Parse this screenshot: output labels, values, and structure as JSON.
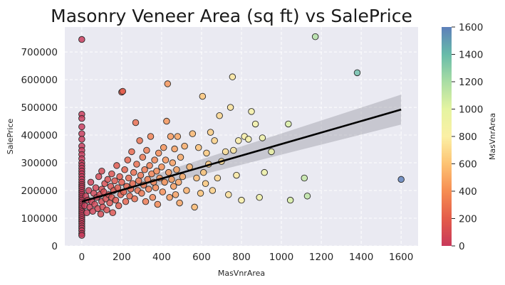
{
  "chart_data": {
    "type": "scatter",
    "title": "Masonry Veneer Area (sq ft) vs SalePrice",
    "xlabel": "MasVnrArea",
    "ylabel": "SalePrice",
    "xlim": [
      -85,
      1685
    ],
    "ylim": [
      0,
      790000
    ],
    "x_ticks": [
      0,
      200,
      400,
      600,
      800,
      1000,
      1200,
      1400,
      1600
    ],
    "y_ticks": [
      0,
      100000,
      200000,
      300000,
      400000,
      500000,
      600000,
      700000
    ],
    "x_tick_labels": [
      "0",
      "200",
      "400",
      "600",
      "800",
      "1000",
      "1200",
      "1400",
      "1600"
    ],
    "y_tick_labels": [
      "0",
      "100000",
      "200000",
      "300000",
      "400000",
      "500000",
      "600000",
      "700000"
    ],
    "grid": true,
    "background": "#eaeaf2",
    "colormap": "Spectral",
    "color_by": "MasVnrArea",
    "colorbar": {
      "label": "MasVnrArea",
      "range": [
        0,
        1600
      ],
      "ticks": [
        0,
        200,
        400,
        600,
        800,
        1000,
        1200,
        1400,
        1600
      ],
      "tick_labels": [
        "0",
        "200",
        "400",
        "600",
        "800",
        "1000",
        "1200",
        "1400",
        "1600"
      ],
      "colors": [
        "#c8395a",
        "#e45c4a",
        "#f68d52",
        "#fdc373",
        "#fbf0a5",
        "#e5f4a1",
        "#a9dda4",
        "#67bba9",
        "#5d7fba"
      ]
    },
    "regression": {
      "start": [
        0,
        160000
      ],
      "end": [
        1600,
        492000
      ],
      "ci_start": [
        148000,
        172000
      ],
      "ci_end": [
        438000,
        546000
      ]
    },
    "points": [
      [
        0,
        745000
      ],
      [
        0,
        475000
      ],
      [
        0,
        460000
      ],
      [
        0,
        430000
      ],
      [
        0,
        405000
      ],
      [
        0,
        385000
      ],
      [
        0,
        360000
      ],
      [
        0,
        345000
      ],
      [
        0,
        330000
      ],
      [
        0,
        315000
      ],
      [
        0,
        300000
      ],
      [
        0,
        290000
      ],
      [
        0,
        280000
      ],
      [
        0,
        270000
      ],
      [
        0,
        260000
      ],
      [
        0,
        250000
      ],
      [
        0,
        240000
      ],
      [
        0,
        230000
      ],
      [
        0,
        222000
      ],
      [
        0,
        215000
      ],
      [
        0,
        208000
      ],
      [
        0,
        200000
      ],
      [
        0,
        193000
      ],
      [
        0,
        186000
      ],
      [
        0,
        179000
      ],
      [
        0,
        172000
      ],
      [
        0,
        165000
      ],
      [
        0,
        158000
      ],
      [
        0,
        151000
      ],
      [
        0,
        144000
      ],
      [
        0,
        137000
      ],
      [
        0,
        130000
      ],
      [
        0,
        123000
      ],
      [
        0,
        116000
      ],
      [
        0,
        109000
      ],
      [
        0,
        102000
      ],
      [
        0,
        95000
      ],
      [
        0,
        88000
      ],
      [
        0,
        80000
      ],
      [
        0,
        72000
      ],
      [
        0,
        64000
      ],
      [
        0,
        55000
      ],
      [
        0,
        45000
      ],
      [
        0,
        38000
      ],
      [
        15,
        145000
      ],
      [
        20,
        180000
      ],
      [
        25,
        120000
      ],
      [
        30,
        165000
      ],
      [
        35,
        200000
      ],
      [
        40,
        140000
      ],
      [
        45,
        230000
      ],
      [
        50,
        160000
      ],
      [
        55,
        125000
      ],
      [
        60,
        190000
      ],
      [
        65,
        150000
      ],
      [
        70,
        210000
      ],
      [
        75,
        175000
      ],
      [
        80,
        135000
      ],
      [
        85,
        250000
      ],
      [
        90,
        185000
      ],
      [
        95,
        115000
      ],
      [
        100,
        205000
      ],
      [
        100,
        160000
      ],
      [
        100,
        270000
      ],
      [
        105,
        140000
      ],
      [
        110,
        195000
      ],
      [
        115,
        225000
      ],
      [
        120,
        170000
      ],
      [
        125,
        130000
      ],
      [
        130,
        240000
      ],
      [
        135,
        185000
      ],
      [
        140,
        155000
      ],
      [
        145,
        215000
      ],
      [
        150,
        260000
      ],
      [
        150,
        175000
      ],
      [
        155,
        120000
      ],
      [
        160,
        200000
      ],
      [
        165,
        235000
      ],
      [
        170,
        165000
      ],
      [
        175,
        290000
      ],
      [
        180,
        210000
      ],
      [
        185,
        145000
      ],
      [
        190,
        250000
      ],
      [
        195,
        185000
      ],
      [
        200,
        230000
      ],
      [
        200,
        555000
      ],
      [
        205,
        558000
      ],
      [
        210,
        195000
      ],
      [
        215,
        275000
      ],
      [
        220,
        160000
      ],
      [
        225,
        215000
      ],
      [
        230,
        310000
      ],
      [
        235,
        245000
      ],
      [
        240,
        180000
      ],
      [
        245,
        205000
      ],
      [
        250,
        340000
      ],
      [
        255,
        225000
      ],
      [
        260,
        265000
      ],
      [
        265,
        170000
      ],
      [
        270,
        445000
      ],
      [
        275,
        295000
      ],
      [
        280,
        200000
      ],
      [
        285,
        235000
      ],
      [
        290,
        380000
      ],
      [
        295,
        255000
      ],
      [
        300,
        190000
      ],
      [
        305,
        320000
      ],
      [
        310,
        220000
      ],
      [
        315,
        275000
      ],
      [
        320,
        160000
      ],
      [
        325,
        345000
      ],
      [
        330,
        240000
      ],
      [
        335,
        205000
      ],
      [
        340,
        290000
      ],
      [
        345,
        395000
      ],
      [
        350,
        260000
      ],
      [
        355,
        175000
      ],
      [
        360,
        230000
      ],
      [
        365,
        310000
      ],
      [
        370,
        210000
      ],
      [
        375,
        270000
      ],
      [
        380,
        150000
      ],
      [
        385,
        335000
      ],
      [
        390,
        245000
      ],
      [
        400,
        285000
      ],
      [
        405,
        195000
      ],
      [
        410,
        355000
      ],
      [
        415,
        230000
      ],
      [
        420,
        310000
      ],
      [
        425,
        450000
      ],
      [
        430,
        585000
      ],
      [
        435,
        265000
      ],
      [
        440,
        175000
      ],
      [
        445,
        395000
      ],
      [
        450,
        240000
      ],
      [
        455,
        300000
      ],
      [
        460,
        215000
      ],
      [
        465,
        350000
      ],
      [
        470,
        185000
      ],
      [
        475,
        275000
      ],
      [
        480,
        395000
      ],
      [
        485,
        230000
      ],
      [
        490,
        155000
      ],
      [
        495,
        320000
      ],
      [
        505,
        250000
      ],
      [
        515,
        360000
      ],
      [
        525,
        200000
      ],
      [
        540,
        285000
      ],
      [
        555,
        405000
      ],
      [
        565,
        140000
      ],
      [
        575,
        245000
      ],
      [
        585,
        355000
      ],
      [
        595,
        190000
      ],
      [
        605,
        540000
      ],
      [
        610,
        265000
      ],
      [
        620,
        225000
      ],
      [
        625,
        335000
      ],
      [
        635,
        295000
      ],
      [
        645,
        410000
      ],
      [
        655,
        200000
      ],
      [
        665,
        380000
      ],
      [
        680,
        245000
      ],
      [
        690,
        470000
      ],
      [
        700,
        305000
      ],
      [
        720,
        340000
      ],
      [
        735,
        185000
      ],
      [
        745,
        500000
      ],
      [
        755,
        610000
      ],
      [
        760,
        345000
      ],
      [
        775,
        255000
      ],
      [
        785,
        380000
      ],
      [
        800,
        165000
      ],
      [
        815,
        395000
      ],
      [
        835,
        385000
      ],
      [
        850,
        485000
      ],
      [
        870,
        440000
      ],
      [
        890,
        175000
      ],
      [
        905,
        390000
      ],
      [
        915,
        265000
      ],
      [
        950,
        340000
      ],
      [
        1035,
        440000
      ],
      [
        1045,
        165000
      ],
      [
        1115,
        245000
      ],
      [
        1130,
        180000
      ],
      [
        1170,
        755000
      ],
      [
        1380,
        625000
      ],
      [
        1600,
        240000
      ]
    ]
  }
}
